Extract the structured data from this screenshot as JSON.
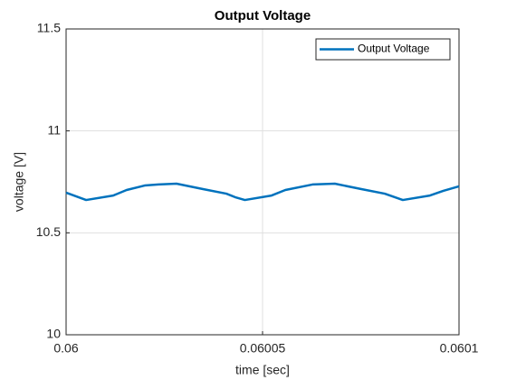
{
  "chart_data": {
    "type": "line",
    "title": "Output Voltage",
    "x_label": "time [sec]",
    "y_label": "voltage [V]",
    "x": [
      0.06,
      0.0600051,
      0.060012,
      0.0600154,
      0.06002,
      0.0600235,
      0.0600281,
      0.060035,
      0.0600408,
      0.060043,
      0.0600455,
      0.0600523,
      0.0600558,
      0.0600627,
      0.0600684,
      0.0600753,
      0.0600811,
      0.0600857,
      0.0600926,
      0.060096,
      0.0601
    ],
    "series": [
      {
        "name": "Output Voltage",
        "color": "#0072bd",
        "values": [
          10.697,
          10.661,
          10.683,
          10.71,
          10.732,
          10.737,
          10.741,
          10.714,
          10.692,
          10.675,
          10.661,
          10.683,
          10.71,
          10.737,
          10.741,
          10.714,
          10.692,
          10.661,
          10.683,
          10.706,
          10.728
        ]
      }
    ],
    "xlim": [
      0.06,
      0.0601
    ],
    "xticks": [
      0.06,
      0.06005,
      0.0601
    ],
    "ylim": [
      10,
      11.5
    ],
    "yticks": [
      10,
      10.5,
      11,
      11.5
    ],
    "grid": true,
    "legend_position": "northeast"
  }
}
